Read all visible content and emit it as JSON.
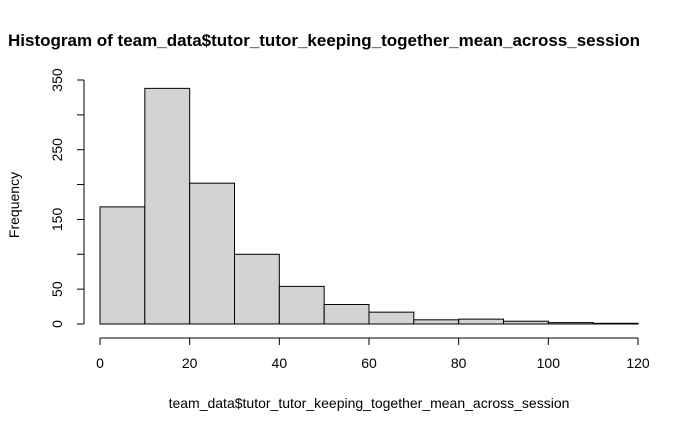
{
  "chart_data": {
    "type": "bar",
    "title": "Histogram of team_data$tutor_tutor_keeping_together_mean_across_session",
    "xlabel": "team_data$tutor_tutor_keeping_together_mean_across_session",
    "ylabel": "Frequency",
    "bins": [
      {
        "x0": 0,
        "x1": 10,
        "value": 168
      },
      {
        "x0": 10,
        "x1": 20,
        "value": 338
      },
      {
        "x0": 20,
        "x1": 30,
        "value": 202
      },
      {
        "x0": 30,
        "x1": 40,
        "value": 100
      },
      {
        "x0": 40,
        "x1": 50,
        "value": 54
      },
      {
        "x0": 50,
        "x1": 60,
        "value": 28
      },
      {
        "x0": 60,
        "x1": 70,
        "value": 17
      },
      {
        "x0": 70,
        "x1": 80,
        "value": 6
      },
      {
        "x0": 80,
        "x1": 90,
        "value": 7
      },
      {
        "x0": 90,
        "x1": 100,
        "value": 4
      },
      {
        "x0": 100,
        "x1": 110,
        "value": 2
      },
      {
        "x0": 110,
        "x1": 120,
        "value": 1
      }
    ],
    "xlim": [
      0,
      120
    ],
    "ylim": [
      0,
      350
    ],
    "x_ticks": [
      0,
      20,
      40,
      60,
      80,
      100,
      120
    ],
    "y_ticks": [
      0,
      50,
      150,
      250,
      350
    ],
    "y_minor_ticks": [
      100,
      200,
      300
    ],
    "grid": false,
    "bar_color": "#d3d3d3"
  }
}
